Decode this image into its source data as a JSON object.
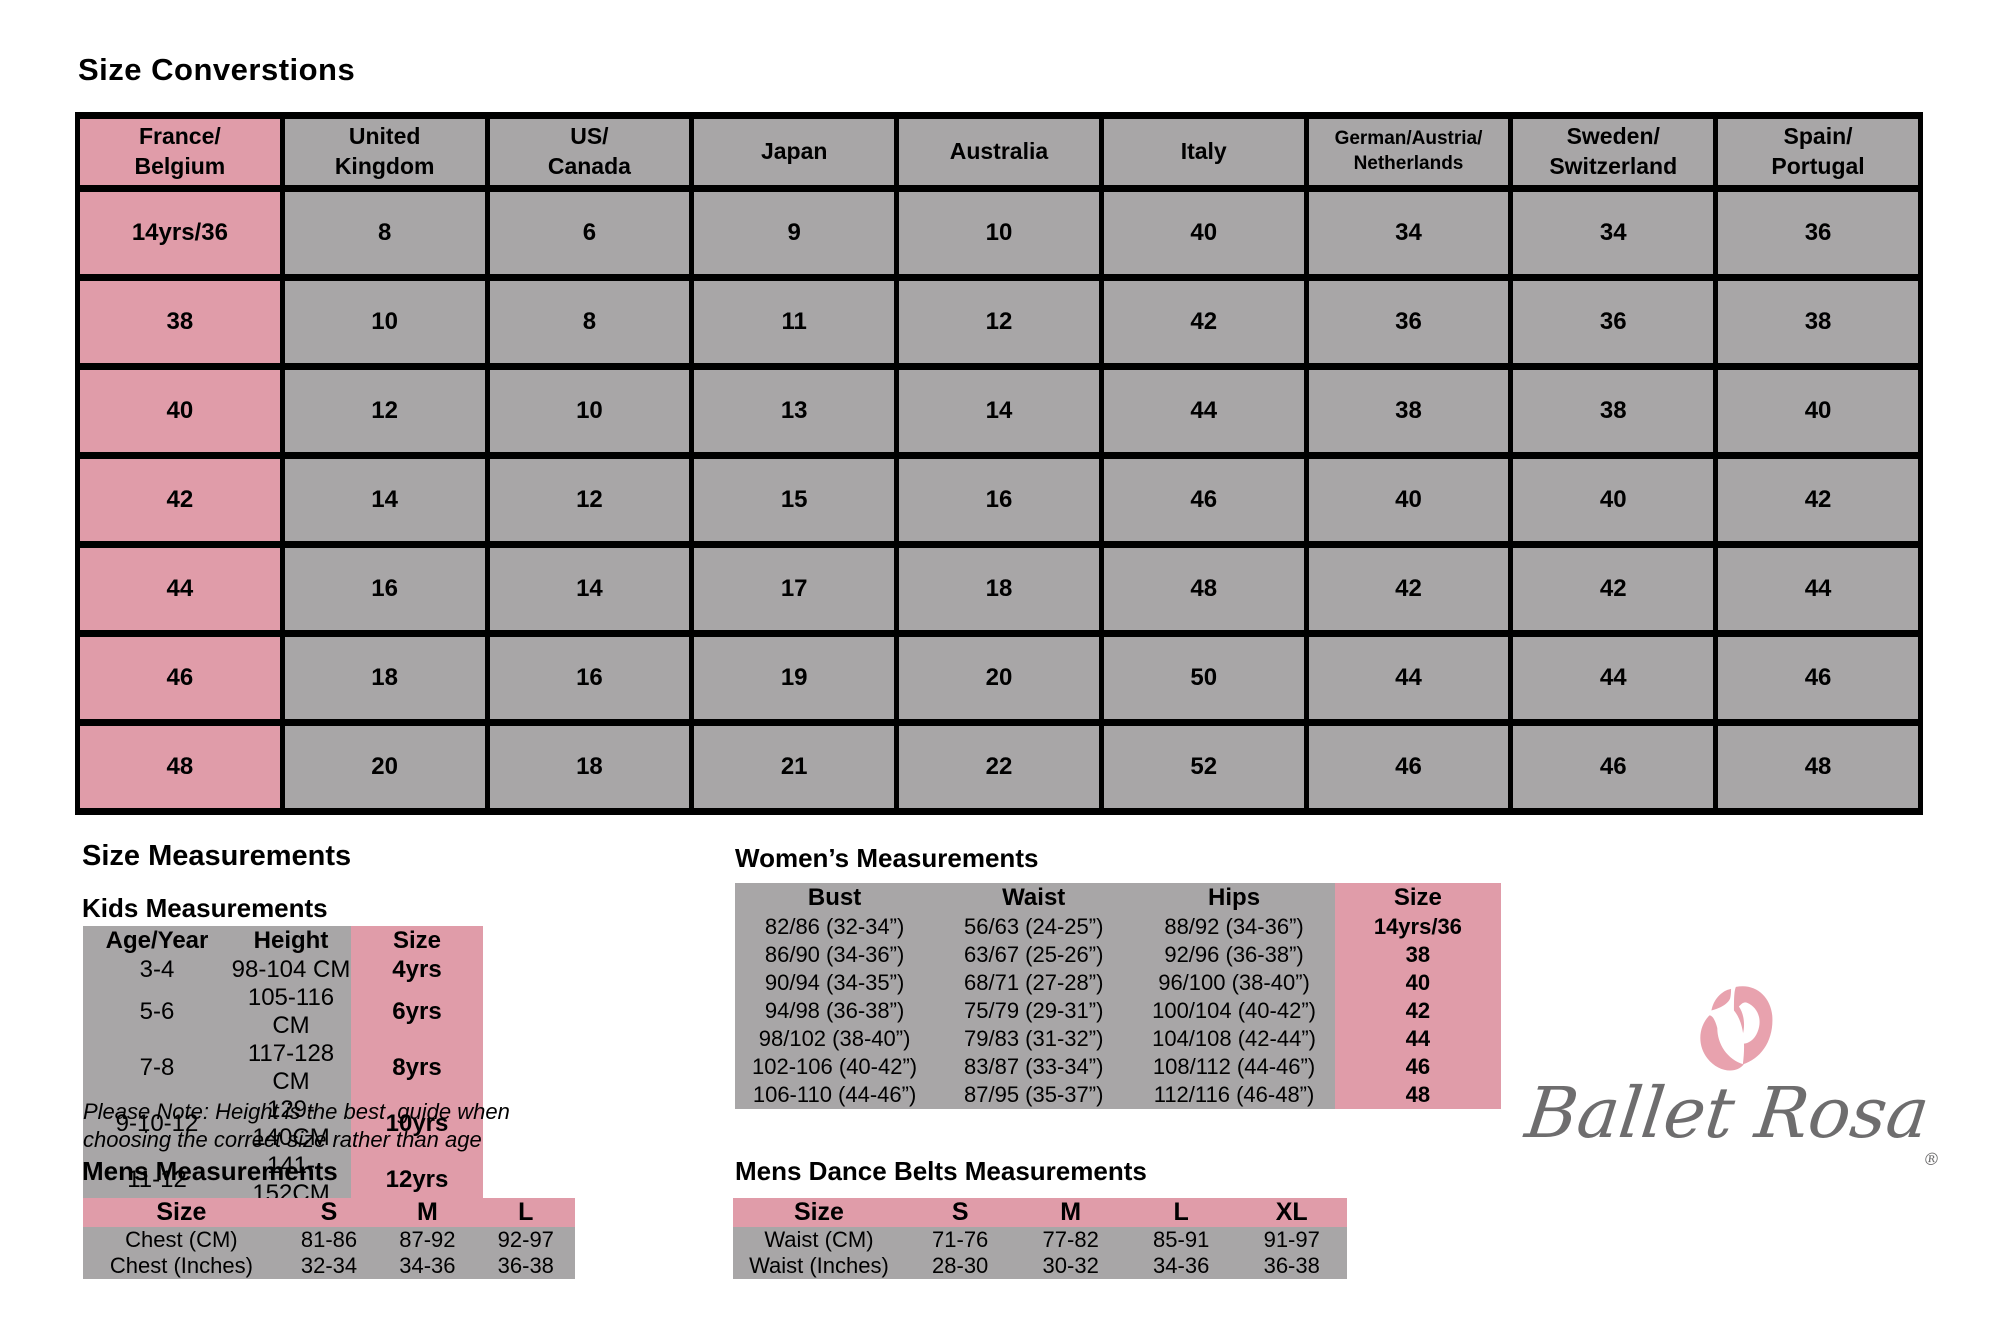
{
  "title": "Size Converstions",
  "colors": {
    "pink": "#e09ca9",
    "gray": "#a8a6a7",
    "logo_pink": "#e8a2ae",
    "logo_gray": "#6e6d6e"
  },
  "conversions": {
    "headers": [
      "France/\nBelgium",
      "United\nKingdom",
      "US/\nCanada",
      "Japan",
      "Australia",
      "Italy",
      "German/Austria/\nNetherlands",
      "Sweden/\nSwitzerland",
      "Spain/\nPortugal"
    ],
    "rows": [
      [
        "14yrs/36",
        "8",
        "6",
        "9",
        "10",
        "40",
        "34",
        "34",
        "36"
      ],
      [
        "38",
        "10",
        "8",
        "11",
        "12",
        "42",
        "36",
        "36",
        "38"
      ],
      [
        "40",
        "12",
        "10",
        "13",
        "14",
        "44",
        "38",
        "38",
        "40"
      ],
      [
        "42",
        "14",
        "12",
        "15",
        "16",
        "46",
        "40",
        "40",
        "42"
      ],
      [
        "44",
        "16",
        "14",
        "17",
        "18",
        "48",
        "42",
        "42",
        "44"
      ],
      [
        "46",
        "18",
        "16",
        "19",
        "20",
        "50",
        "44",
        "44",
        "46"
      ],
      [
        "48",
        "20",
        "18",
        "21",
        "22",
        "52",
        "46",
        "46",
        "48"
      ]
    ]
  },
  "size_measurements_heading": "Size Measurements",
  "kids": {
    "heading": "Kids Measurements",
    "headers": [
      "Age/Year",
      "Height",
      "Size"
    ],
    "rows": [
      [
        "3-4",
        "98-104 CM",
        "4yrs"
      ],
      [
        "5-6",
        "105-116 CM",
        "6yrs"
      ],
      [
        "7-8",
        "117-128 CM",
        "8yrs"
      ],
      [
        "9-10-12",
        "129-140CM",
        "10yrs"
      ],
      [
        "11-12",
        "141-152CM",
        "12yrs"
      ]
    ],
    "note": "Please Note: Height is the best  guide when\nchoosing the correct size rather than age"
  },
  "womens": {
    "heading": "Women’s Measurements",
    "headers": [
      "Bust",
      "Waist",
      "Hips",
      "Size"
    ],
    "rows": [
      [
        "82/86 (32-34”)",
        "56/63 (24-25”)",
        "88/92 (34-36”)",
        "14yrs/36"
      ],
      [
        "86/90 (34-36”)",
        "63/67 (25-26”)",
        "92/96 (36-38”)",
        "38"
      ],
      [
        "90/94 (34-35”)",
        "68/71 (27-28”)",
        "96/100 (38-40”)",
        "40"
      ],
      [
        "94/98 (36-38”)",
        "75/79 (29-31”)",
        "100/104 (40-42”)",
        "42"
      ],
      [
        "98/102 (38-40”)",
        "79/83 (31-32”)",
        "104/108 (42-44”)",
        "44"
      ],
      [
        "102-106 (40-42”)",
        "83/87 (33-34”)",
        "108/112 (44-46”)",
        "46"
      ],
      [
        "106-110 (44-46”)",
        "87/95 (35-37”)",
        "112/116 (46-48”)",
        "48"
      ]
    ]
  },
  "mens": {
    "heading": "Mens Measurements",
    "headers": [
      "Size",
      "S",
      "M",
      "L"
    ],
    "rows": [
      [
        "Chest (CM)",
        "81-86",
        "87-92",
        "92-97"
      ],
      [
        "Chest (Inches)",
        "32-34",
        "34-36",
        "36-38"
      ]
    ]
  },
  "belts": {
    "heading": "Mens Dance Belts Measurements",
    "headers": [
      "Size",
      "S",
      "M",
      "L",
      "XL"
    ],
    "rows": [
      [
        "Waist (CM)",
        "71-76",
        "77-82",
        "85-91",
        "91-97"
      ],
      [
        "Waist (Inches)",
        "28-30",
        "30-32",
        "34-36",
        "36-38"
      ]
    ]
  },
  "logo": {
    "brand": "Ballet Rosa",
    "registered": "®",
    "icon": "rose"
  }
}
